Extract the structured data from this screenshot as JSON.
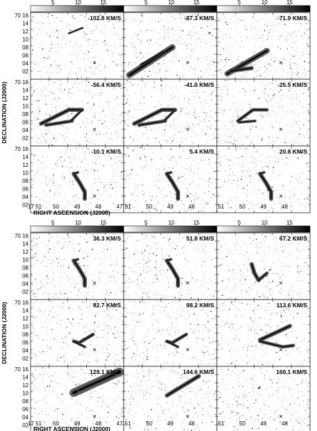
{
  "colorbar_ticks": [
    "5",
    "10",
    "15"
  ],
  "ylabel": "DECLINATION (J2000)",
  "xlabel": "RIGHT ASCENSION (J2000)",
  "dec_ticks_top": [
    "70 16",
    "14",
    "12",
    "10",
    "08",
    "06",
    "04",
    "02"
  ],
  "dec_ticks": [
    "16",
    "14",
    "12",
    "10",
    "08",
    "06",
    "04",
    "02"
  ],
  "ra_ticks": [
    "17 51",
    "50",
    "49",
    "48",
    "47"
  ],
  "ra_ticks_plain": [
    "51",
    "50",
    "49",
    "48",
    "47"
  ],
  "figures": [
    {
      "panels": [
        {
          "velocity": "-102.8 KM/S",
          "shape": "dots"
        },
        {
          "velocity": "-87.3 KM/S",
          "shape": "bar"
        },
        {
          "velocity": "-71.9 KM/S",
          "shape": "fork"
        },
        {
          "velocity": "-56.4 KM/S",
          "shape": "v-wide"
        },
        {
          "velocity": "-41.0 KM/S",
          "shape": "v-wide"
        },
        {
          "velocity": "-25.5 KM/S",
          "shape": "v-mid"
        },
        {
          "velocity": "-10.1 KM/S",
          "shape": "hook"
        },
        {
          "velocity": "5.4 KM/S",
          "shape": "hook"
        },
        {
          "velocity": "20.8 KM/S",
          "shape": "hook"
        }
      ]
    },
    {
      "panels": [
        {
          "velocity": "36.3 KM/S",
          "shape": "hook"
        },
        {
          "velocity": "51.8 KM/S",
          "shape": "hook"
        },
        {
          "velocity": "67.2 KM/S",
          "shape": "chevron"
        },
        {
          "velocity": "82.7 KM/S",
          "shape": "v-right"
        },
        {
          "velocity": "98.2 KM/S",
          "shape": "v-right"
        },
        {
          "velocity": "113.6 KM/S",
          "shape": "v-right-big"
        },
        {
          "velocity": "129.1 KM/S",
          "shape": "bar-big"
        },
        {
          "velocity": "144.6 KM/S",
          "shape": "bar-small"
        },
        {
          "velocity": "160.1 KM/S",
          "shape": "faint"
        }
      ]
    }
  ]
}
